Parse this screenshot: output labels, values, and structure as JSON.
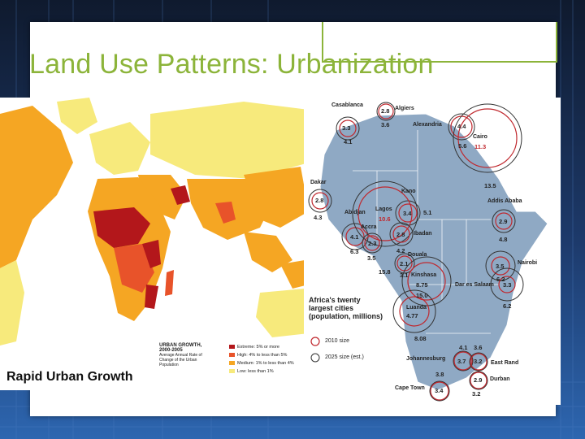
{
  "slide": {
    "title": "Land Use Patterns:  Urbanization"
  },
  "world_map": {
    "caption": "Rapid Urban Growth",
    "legend": {
      "title": "URBAN GROWTH,",
      "years": "2000-2005",
      "subtitle": [
        "Average Annual Rate of",
        "Change of the Urban",
        "Population"
      ],
      "items": [
        {
          "label": "Extreme: 5% or more",
          "color": "#b3171b"
        },
        {
          "label": "High: 4% to less than 5%",
          "color": "#e8532a"
        },
        {
          "label": "Medium: 1% to less than 4%",
          "color": "#f5a623"
        },
        {
          "label": "Low: less than 1%",
          "color": "#f7ea7c"
        }
      ]
    }
  },
  "africa_map": {
    "caption": [
      "Africa's twenty",
      "largest cities",
      "(population, millions)"
    ],
    "key": [
      {
        "label": "2010 size"
      },
      {
        "label": "2025 size (est.)"
      }
    ],
    "cities": [
      {
        "name": "Casablanca",
        "v2010": "3.3",
        "v2025": "4.1"
      },
      {
        "name": "Algiers",
        "v2010": "2.8",
        "v2025": "3.6"
      },
      {
        "name": "Alexandria",
        "v2010": "4.4",
        "v2025": "5.6"
      },
      {
        "name": "Cairo",
        "v2010": "11.3",
        "v2025": "13.5"
      },
      {
        "name": "Dakar",
        "v2010": "2.8",
        "v2025": "4.3"
      },
      {
        "name": "Kano",
        "v2010": "3.4",
        "v2025": "5.1"
      },
      {
        "name": "Addis Ababa",
        "v2010": "2.9",
        "v2025": "4.8"
      },
      {
        "name": "Abidjan",
        "v2010": "4.1",
        "v2025": "6.3"
      },
      {
        "name": "Lagos",
        "v2010": "10.6",
        "v2025": "15.8"
      },
      {
        "name": "Accra",
        "v2010": "2.3",
        "v2025": "3.5"
      },
      {
        "name": "Ibadan",
        "v2010": "2.8",
        "v2025": "4.2"
      },
      {
        "name": "Douala",
        "v2010": "2.1",
        "v2025": "3.1"
      },
      {
        "name": "Nairobi",
        "v2010": "3.5",
        "v2025": "6.2"
      },
      {
        "name": "Kinshasa",
        "v2010": "8.75",
        "v2025": "15.0"
      },
      {
        "name": "Dar es Salaam",
        "v2010": "3.3",
        "v2025": "6.2"
      },
      {
        "name": "Luanda",
        "v2010": "4.77",
        "v2025": "8.08"
      },
      {
        "name": "Johannesburg",
        "v2010": "3.7",
        "v2025": "4.1"
      },
      {
        "name": "East Rand",
        "v2010": "3.2",
        "v2025": "3.6"
      },
      {
        "name": "Durban",
        "v2010": "2.9",
        "v2025": "3.2"
      },
      {
        "name": "Cape Town",
        "v2010": "3.4",
        "v2025": "3.8"
      }
    ]
  }
}
